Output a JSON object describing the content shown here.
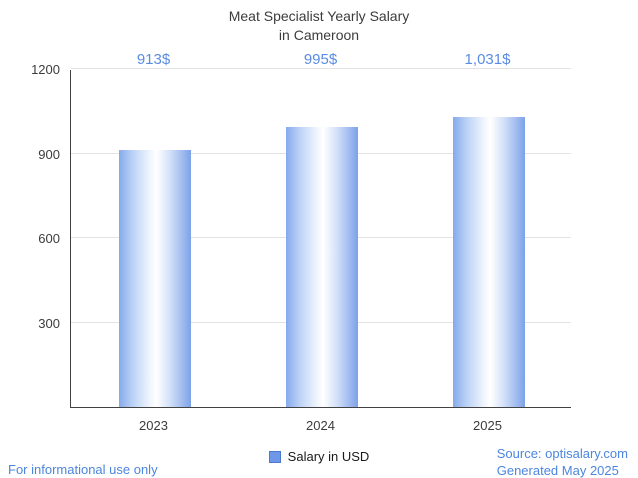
{
  "title_display": "Meat Specialist Yearly Salary\nin Cameroon",
  "chart_data": {
    "type": "bar",
    "title": "Meat Specialist Yearly Salary in Cameroon",
    "categories": [
      "2023",
      "2024",
      "2025"
    ],
    "values": [
      913,
      995,
      1031
    ],
    "value_labels": [
      "913$",
      "995$",
      "1,031$"
    ],
    "series": [
      {
        "name": "Salary in USD",
        "values": [
          913,
          995,
          1031
        ]
      }
    ],
    "xlabel": "",
    "ylabel": "",
    "ylim": [
      0,
      1200
    ],
    "yticks": [
      300,
      600,
      900,
      1200
    ],
    "grid": true,
    "legend": "Salary in USD",
    "legend_position": "bottom",
    "bar_color_edge": "#7da2e9",
    "bar_color_center": "#ffffff",
    "annotation_color": "#5a8ce4"
  },
  "legend": {
    "label": "Salary in USD"
  },
  "footer": {
    "left": "For informational use only",
    "source": "Source: optisalary.com",
    "generated": "Generated May 2025"
  },
  "colors": {
    "accent_text": "#4c86de",
    "axis": "#424242",
    "gridline": "#e3e3e3",
    "tick_text": "#3c3c3c"
  }
}
